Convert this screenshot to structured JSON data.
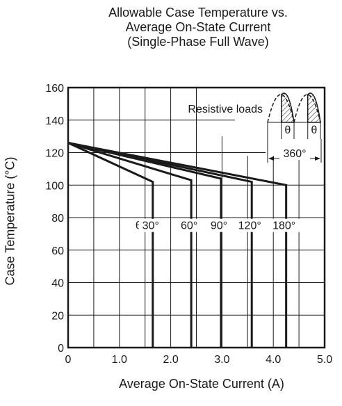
{
  "chart_data": {
    "type": "line",
    "title": [
      "Allowable Case Temperature vs.",
      "Average On-State Current",
      "(Single-Phase Full Wave)"
    ],
    "xlabel": "Average On-State Current  (A)",
    "ylabel": "Case Temperature  (°C)",
    "xlim": [
      0,
      5.0
    ],
    "ylim": [
      0,
      160
    ],
    "xticks": [
      0,
      1.0,
      2.0,
      3.0,
      4.0,
      5.0
    ],
    "xtick_labels": [
      "0",
      "1.0",
      "2.0",
      "3.0",
      "4.0",
      "5.0"
    ],
    "yticks": [
      0,
      20,
      40,
      60,
      80,
      100,
      120,
      140,
      160
    ],
    "ytick_labels": [
      "0",
      "20",
      "40",
      "60",
      "80",
      "100",
      "120",
      "140",
      "160"
    ],
    "grid": true,
    "series": [
      {
        "name": "30°",
        "x": [
          0,
          1.65,
          1.65
        ],
        "y": [
          126,
          102,
          0
        ]
      },
      {
        "name": "60°",
        "x": [
          0,
          2.4,
          2.4
        ],
        "y": [
          126,
          103,
          0
        ]
      },
      {
        "name": "90°",
        "x": [
          0,
          2.98,
          2.98
        ],
        "y": [
          126,
          104,
          0
        ]
      },
      {
        "name": "120°",
        "x": [
          0,
          3.58,
          3.58
        ],
        "y": [
          126,
          102,
          0
        ]
      },
      {
        "name": "180°",
        "x": [
          0,
          4.25,
          4.25
        ],
        "y": [
          126,
          100,
          0
        ]
      }
    ],
    "annotations": {
      "theta_prefix": "θ =",
      "angle_labels": [
        "30°",
        "60°",
        "90°",
        "120°",
        "180°"
      ],
      "load_label": "Resistive loads",
      "theta_symbol": "θ",
      "period_label": "360°"
    },
    "colors": {
      "line": "#1a1a1a",
      "grid": "#1a1a1a",
      "background": "#ffffff"
    }
  }
}
